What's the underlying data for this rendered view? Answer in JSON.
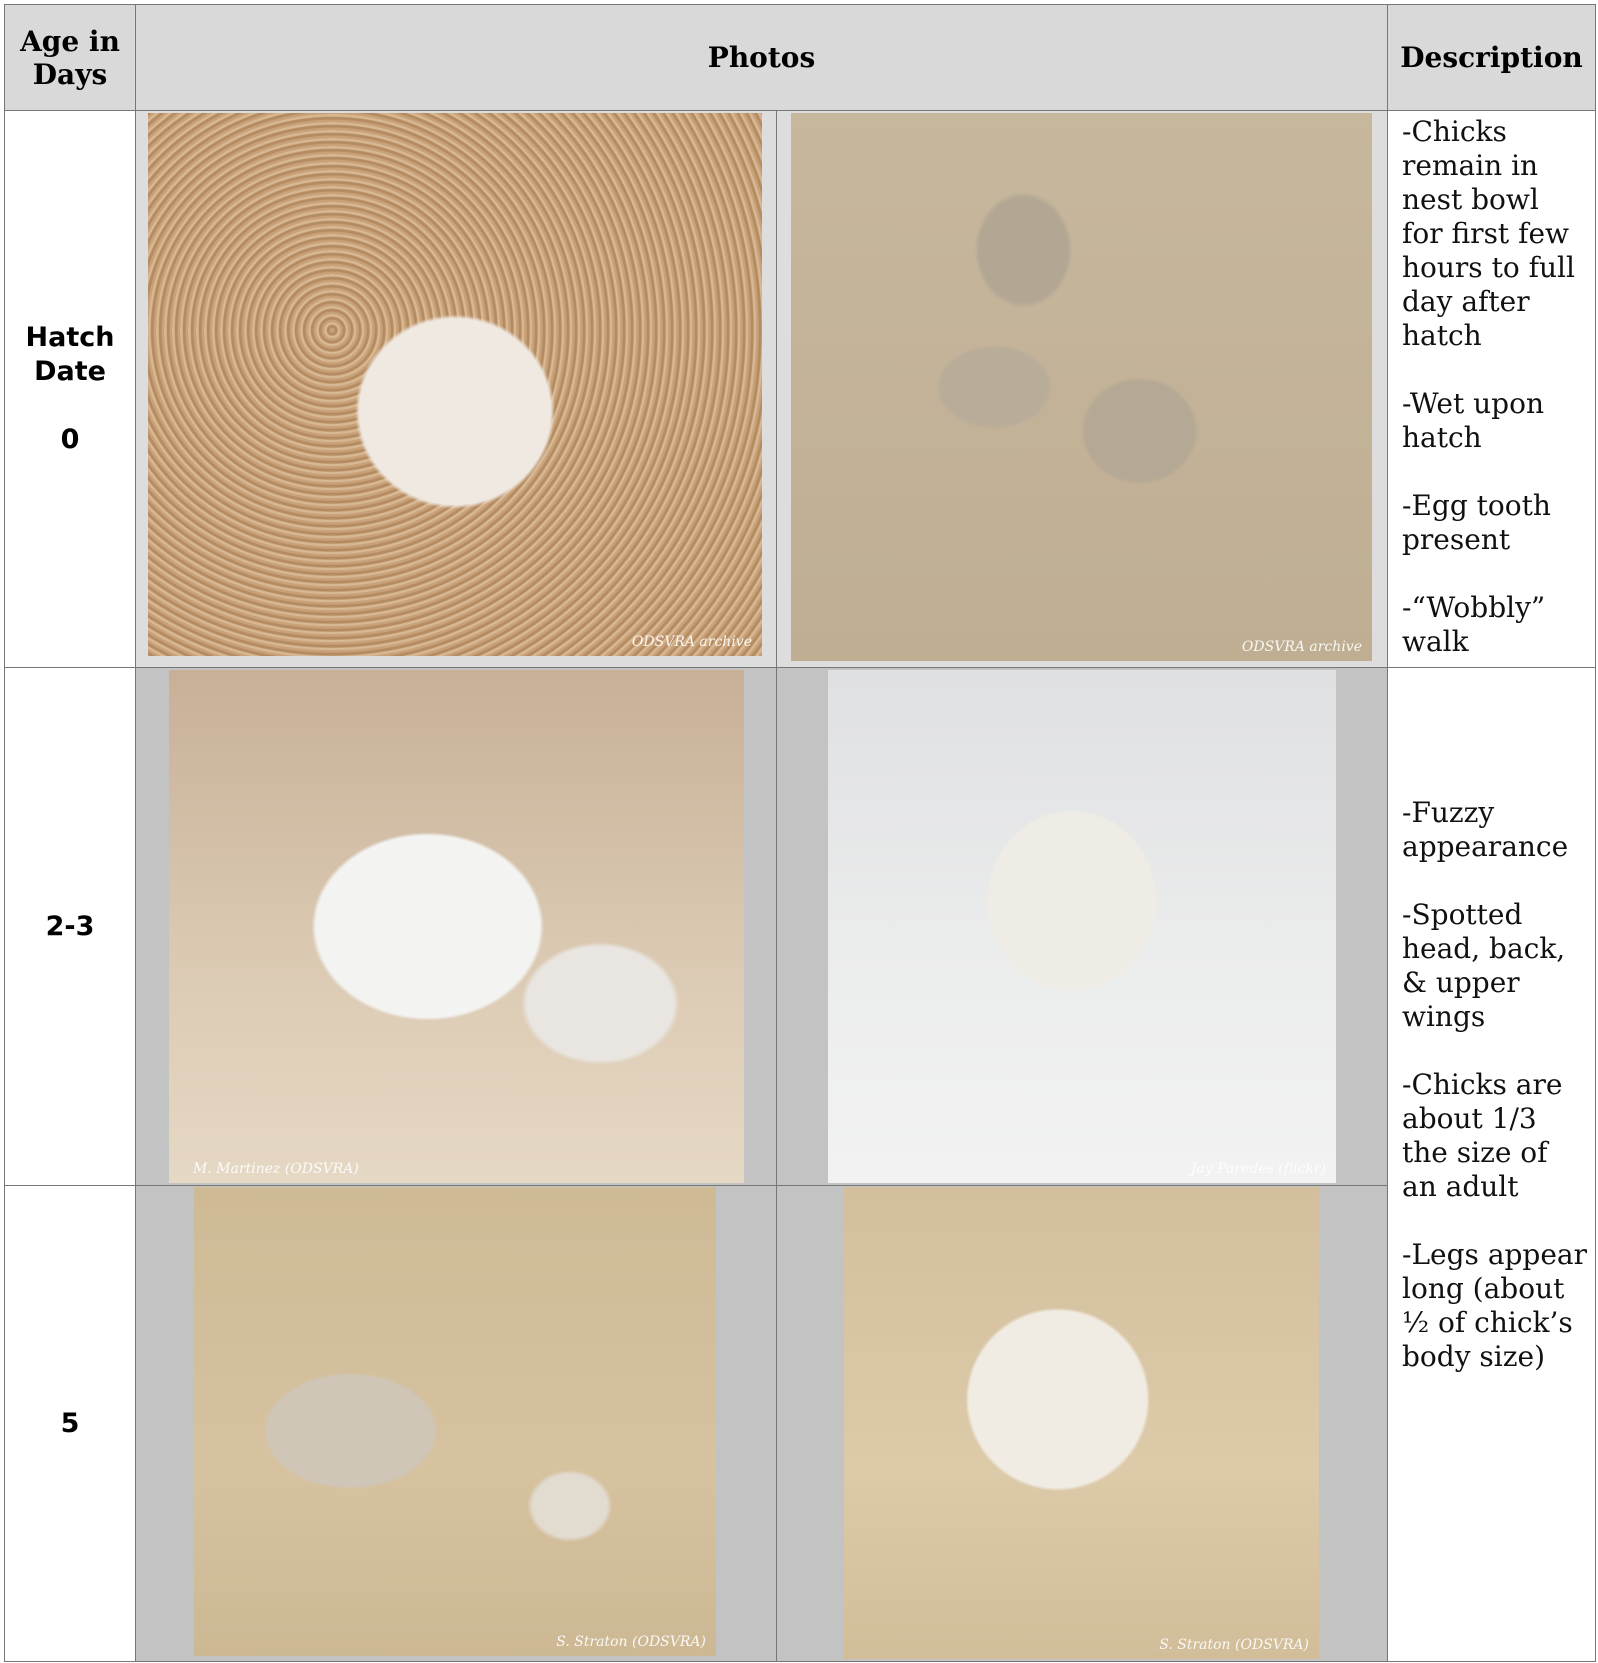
{
  "header": {
    "age": "Age in Days",
    "photos": "Photos",
    "description": "Description"
  },
  "rows": [
    {
      "age": [
        "Hatch Date",
        "0"
      ],
      "photos": [
        {
          "credit": "ODSVRA archive"
        },
        {
          "credit": "ODSVRA archive"
        }
      ],
      "description": [
        "-Chicks remain in nest bowl for first few hours to full day after hatch",
        "-Wet upon hatch",
        "-Egg tooth present",
        "-“Wobbly” walk"
      ]
    },
    {
      "age": [
        "2-3"
      ],
      "photos": [
        {
          "credit": "M. Martinez (ODSVRA)"
        },
        {
          "credit": "Jay Paredes (flickr)"
        }
      ],
      "description": [
        "-Fuzzy appearance",
        "-Spotted head, back, & upper wings",
        "-Chicks are about 1/3 the size of an adult",
        "-Legs appear long (about ½ of chick’s body size)"
      ]
    },
    {
      "age": [
        "5"
      ],
      "photos": [
        {
          "credit": "S. Straton (ODSVRA)"
        },
        {
          "credit": "S. Straton (ODSVRA)"
        }
      ]
    }
  ]
}
